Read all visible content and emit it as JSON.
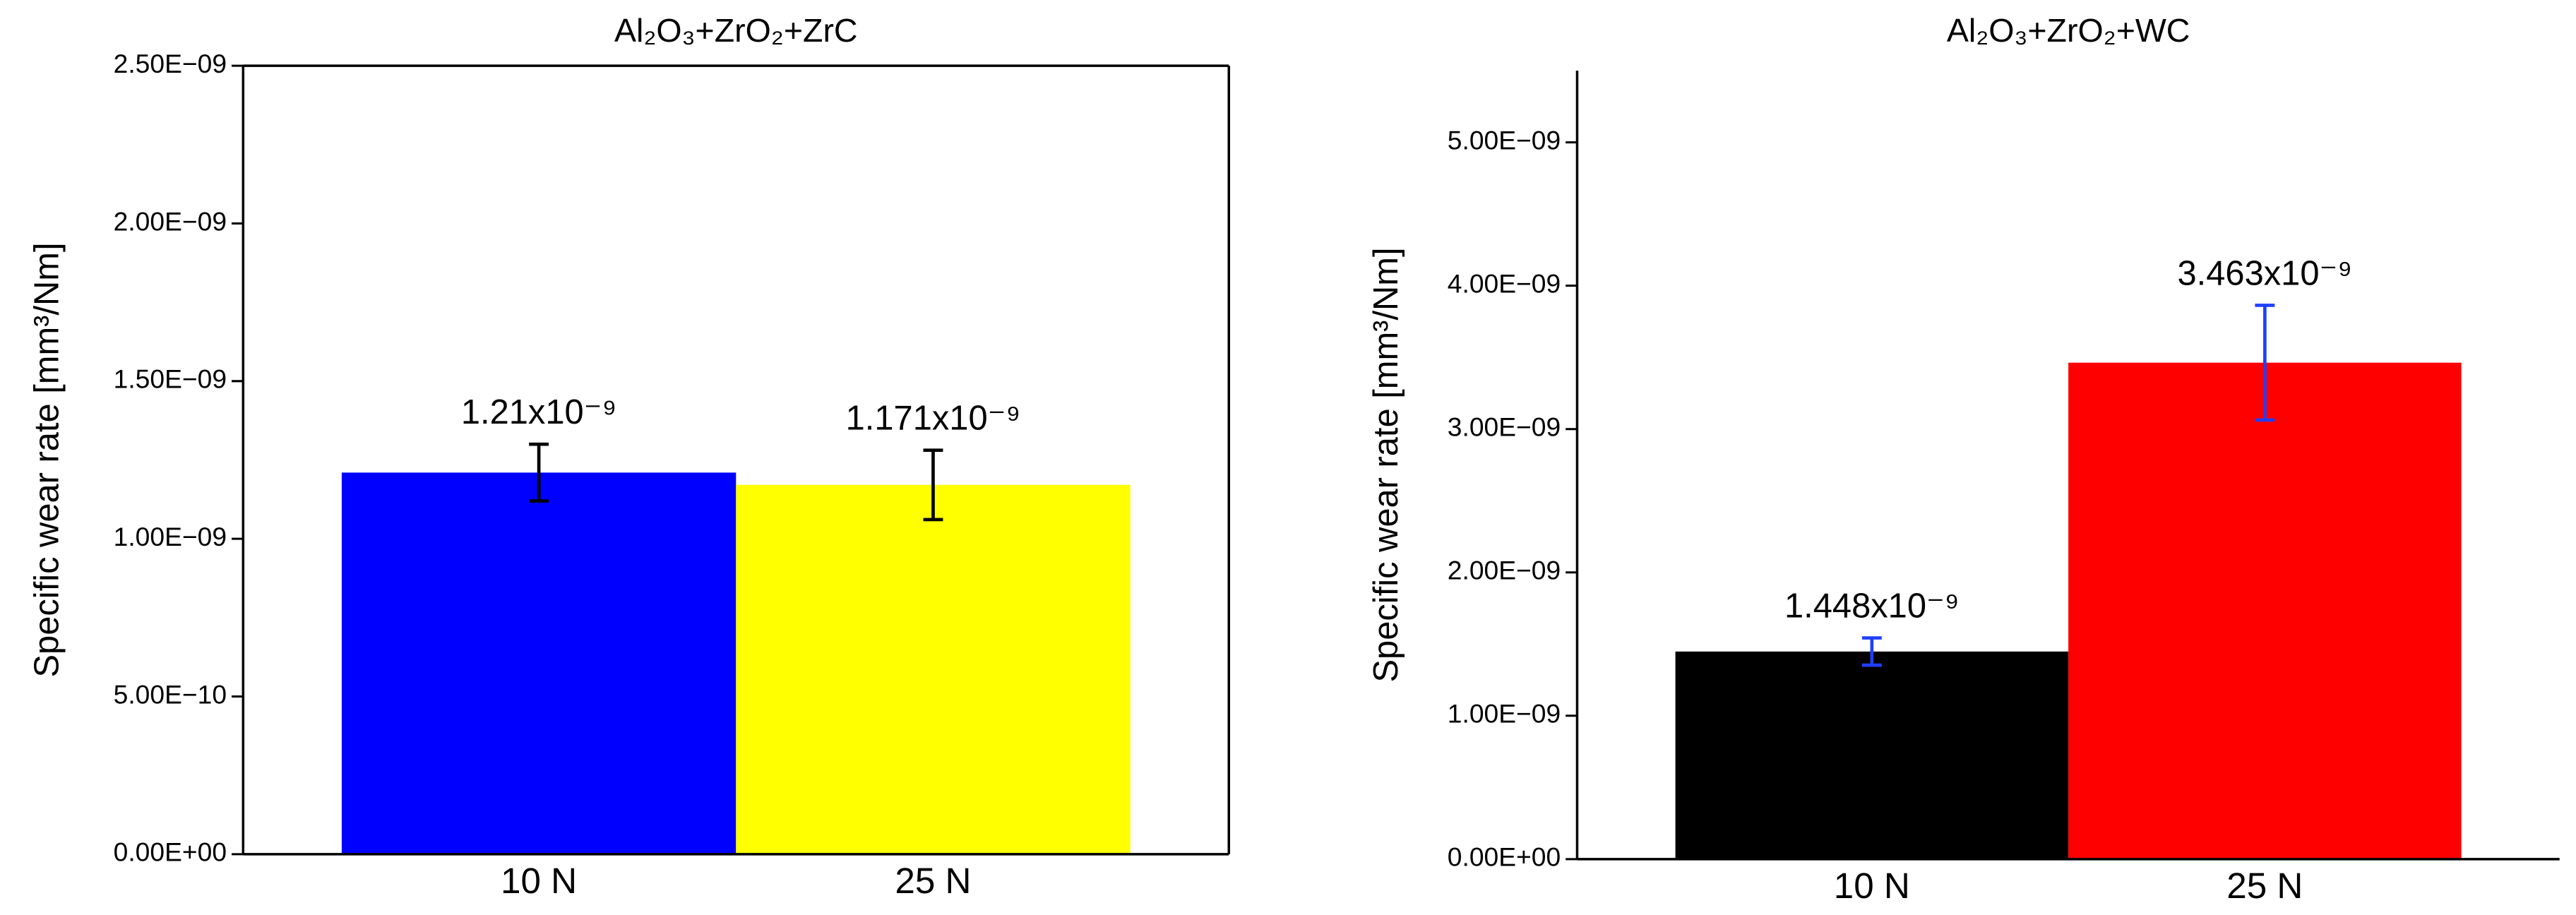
{
  "chart_data": [
    {
      "type": "bar",
      "title": "Al₂O₃+ZrO₂+ZrC",
      "y_label": "Specific wear rate [mm³/Nm]",
      "categories": [
        "10 N",
        "25 N"
      ],
      "values": [
        1.21e-09,
        1.171e-09
      ],
      "errors": [
        9e-11,
        1.1e-10
      ],
      "value_labels": [
        "1.21x10⁻⁹",
        "1.171x10⁻⁹"
      ],
      "colors": [
        "#0000ff",
        "#ffff00"
      ],
      "error_color": "#000000",
      "frame": "box",
      "ylim": [
        0,
        2.5e-09
      ],
      "yticks": [
        {
          "value": 0,
          "label": "0.00E+00"
        },
        {
          "value": 5e-10,
          "label": "5.00E−10"
        },
        {
          "value": 1e-09,
          "label": "1.00E−09"
        },
        {
          "value": 1.5e-09,
          "label": "1.50E−09"
        },
        {
          "value": 2e-09,
          "label": "2.00E−09"
        },
        {
          "value": 2.5e-09,
          "label": "2.50E−09"
        }
      ]
    },
    {
      "type": "bar",
      "title": "Al₂O₃+ZrO₂+WC",
      "y_label": "Specific wear rate [mm³/Nm]",
      "categories": [
        "10 N",
        "25 N"
      ],
      "values": [
        1.448e-09,
        3.463e-09
      ],
      "errors": [
        9.5e-11,
        4e-10
      ],
      "value_labels": [
        "1.448x10⁻⁹",
        "3.463x10⁻⁹"
      ],
      "colors": [
        "#000000",
        "#ff0000"
      ],
      "error_color": "#1f3fff",
      "frame": "axes",
      "ylim": [
        0,
        5.5e-09
      ],
      "yticks": [
        {
          "value": 0,
          "label": "0.00E+00"
        },
        {
          "value": 1e-09,
          "label": "1.00E−09"
        },
        {
          "value": 2e-09,
          "label": "2.00E−09"
        },
        {
          "value": 3e-09,
          "label": "3.00E−09"
        },
        {
          "value": 4e-09,
          "label": "4.00E−09"
        },
        {
          "value": 5e-09,
          "label": "5.00E−09"
        }
      ]
    }
  ]
}
